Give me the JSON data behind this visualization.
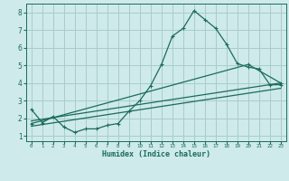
{
  "xlabel": "Humidex (Indice chaleur)",
  "background_color": "#ceeaea",
  "grid_color": "#aacccc",
  "line_color": "#1a6b5e",
  "xlim": [
    -0.5,
    23.5
  ],
  "ylim": [
    0.7,
    8.5
  ],
  "yticks": [
    1,
    2,
    3,
    4,
    5,
    6,
    7,
    8
  ],
  "xticks": [
    0,
    1,
    2,
    3,
    4,
    5,
    6,
    7,
    8,
    9,
    10,
    11,
    12,
    13,
    14,
    15,
    16,
    17,
    18,
    19,
    20,
    21,
    22,
    23
  ],
  "line1_x": [
    0,
    1,
    2,
    3,
    4,
    5,
    6,
    7,
    8,
    9,
    10,
    11,
    12,
    13,
    14,
    15,
    16,
    17,
    18,
    19,
    20,
    21,
    22,
    23
  ],
  "line1_y": [
    2.5,
    1.75,
    2.1,
    1.5,
    1.2,
    1.4,
    1.4,
    1.6,
    1.7,
    2.4,
    3.0,
    3.85,
    5.05,
    6.65,
    7.1,
    8.1,
    7.6,
    7.1,
    6.2,
    5.1,
    4.9,
    4.8,
    3.9,
    3.9
  ],
  "line2_x": [
    0,
    23
  ],
  "line2_y": [
    1.85,
    4.0
  ],
  "line3_x": [
    0,
    23
  ],
  "line3_y": [
    1.55,
    3.7
  ],
  "line4_x": [
    0,
    20,
    23
  ],
  "line4_y": [
    1.7,
    5.05,
    4.0
  ]
}
